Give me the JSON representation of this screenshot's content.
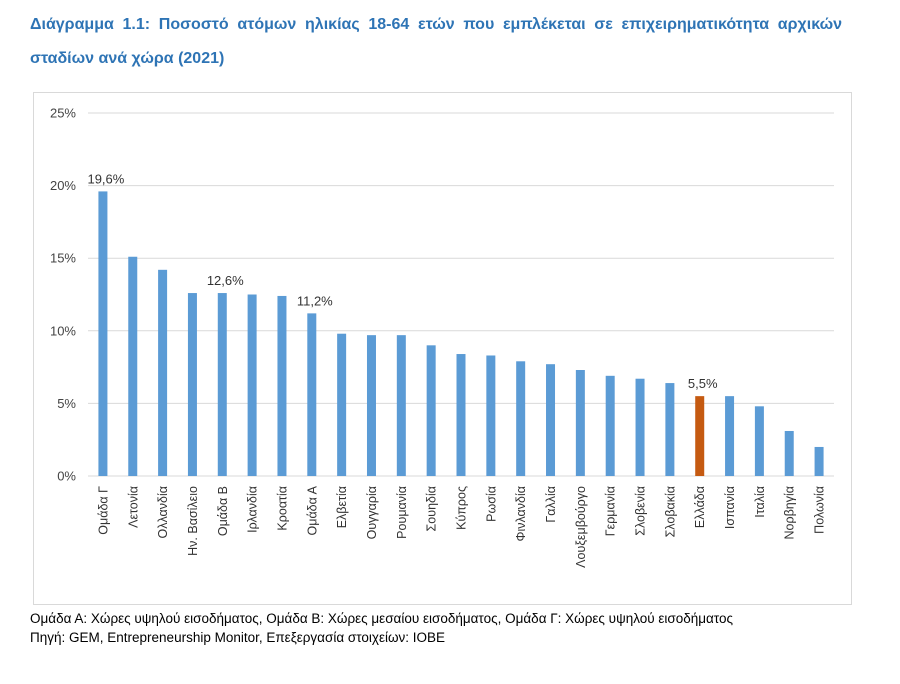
{
  "header": {
    "title": "Διάγραμμα 1.1: Ποσοστό ατόμων ηλικίας 18-64 ετών που εμπλέκεται σε επιχειρηματικότητα αρχικών σταδίων ανά χώρα (2021)"
  },
  "notes": {
    "groups": "Ομάδα Α: Χώρες υψηλού εισοδήματος, Ομάδα Β: Χώρες μεσαίου εισοδήματος, Ομάδα Γ: Χώρες υψηλού εισοδήματος",
    "source": "Πηγή: GEM, Entrepreneurship Monitor, Επεξεργασία στοιχείων: ΙΟΒΕ"
  },
  "colors": {
    "title": "#2e74b5",
    "bar": "#5b9bd5",
    "highlight": "#c55a11",
    "grid": "#d9d9d9"
  },
  "chart_data": {
    "type": "bar",
    "categories": [
      "Ομάδα Γ",
      "Λετονία",
      "Ολλανδία",
      "Ην. Βασίλειο",
      "Ομάδα Β",
      "Ιρλανδία",
      "Κροατία",
      "Ομάδα Α",
      "Ελβετία",
      "Ουγγαρία",
      "Ρουμανία",
      "Σουηδία",
      "Κύπρος",
      "Ρωσία",
      "Φινλανδία",
      "Γαλλία",
      "Λουξεμβούργο",
      "Γερμανία",
      "Σλοβενία",
      "Σλοβακία",
      "Ελλάδα",
      "Ισπανία",
      "Ιταλία",
      "Νορβηγία",
      "Πολωνία"
    ],
    "values": [
      19.6,
      15.1,
      14.2,
      12.6,
      12.6,
      12.5,
      12.4,
      11.2,
      9.8,
      9.7,
      9.7,
      9.0,
      8.4,
      8.3,
      7.9,
      7.7,
      7.3,
      6.9,
      6.7,
      6.4,
      5.5,
      5.5,
      4.8,
      3.1,
      2.0
    ],
    "ylim": [
      0,
      25
    ],
    "yticks": [
      0,
      5,
      10,
      15,
      20,
      25
    ],
    "ytick_labels": [
      "0%",
      "5%",
      "10%",
      "15%",
      "20%",
      "25%"
    ],
    "highlight_category": "Ελλάδα",
    "data_labels": [
      {
        "category": "Ομάδα Γ",
        "text": "19,6%"
      },
      {
        "category": "Ομάδα Β",
        "text": "12,6%"
      },
      {
        "category": "Ομάδα Α",
        "text": "11,2%"
      },
      {
        "category": "Ελλάδα",
        "text": "5,5%"
      }
    ],
    "grid": true,
    "legend": "none"
  }
}
